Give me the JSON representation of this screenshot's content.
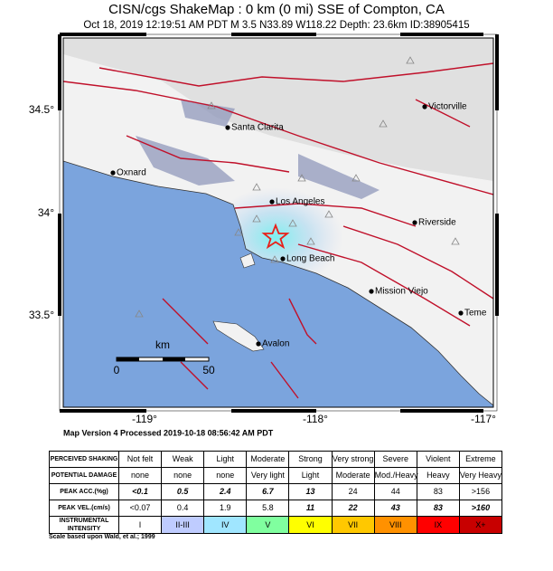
{
  "header": {
    "title": "CISN/cgs ShakeMap : 0 km (0 mi) SSE of Compton, CA",
    "subtitle": "Oct 18, 2019 12:19:51 AM PDT   M 3.5   N33.89 W118.22   Depth: 23.6km   ID:38905415"
  },
  "map": {
    "lat_labels": [
      "34.5°",
      "34°",
      "33.5°"
    ],
    "lon_labels": [
      "-119°",
      "-118°",
      "-117°"
    ],
    "cities": [
      "Victorville",
      "Santa Clarita",
      "Oxnard",
      "Los Angeles",
      "Riverside",
      "Long Beach",
      "Mission Viejo",
      "Teme",
      "Avalon"
    ],
    "scale": {
      "unit": "km",
      "ticks": [
        "0",
        "50"
      ]
    },
    "version": "Map Version 4 Processed 2019-10-18 08:56:42 AM PDT"
  },
  "table": {
    "rows": [
      {
        "label": "PERCEIVED SHAKING",
        "cells": [
          "Not felt",
          "Weak",
          "Light",
          "Moderate",
          "Strong",
          "Very strong",
          "Severe",
          "Violent",
          "Extreme"
        ]
      },
      {
        "label": "POTENTIAL DAMAGE",
        "cells": [
          "none",
          "none",
          "none",
          "Very light",
          "Light",
          "Moderate",
          "Mod./Heavy",
          "Heavy",
          "Very Heavy"
        ]
      },
      {
        "label": "PEAK ACC.(%g)",
        "cells": [
          "<0.1",
          "0.5",
          "2.4",
          "6.7",
          "13",
          "24",
          "44",
          "83",
          ">156"
        ]
      },
      {
        "label": "PEAK VEL.(cm/s)",
        "cells": [
          "<0.07",
          "0.4",
          "1.9",
          "5.8",
          "11",
          "22",
          "43",
          "83",
          ">160"
        ]
      },
      {
        "label": "INSTRUMENTAL INTENSITY",
        "cells": [
          "I",
          "II-III",
          "IV",
          "V",
          "VI",
          "VII",
          "VIII",
          "IX",
          "X+"
        ]
      }
    ],
    "note": "Scale based upon Wald, et al.; 1999"
  }
}
